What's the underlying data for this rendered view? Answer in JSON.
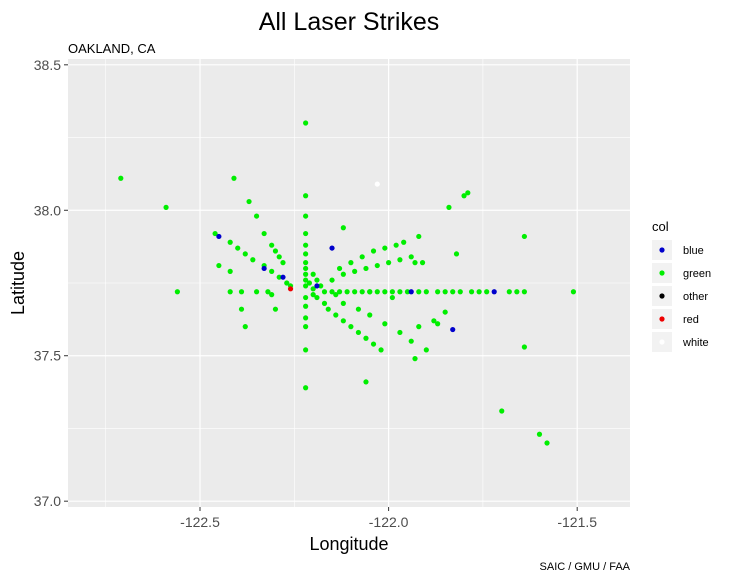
{
  "chart_data": {
    "type": "scatter",
    "title": "All Laser Strikes",
    "subtitle": "OAKLAND, CA",
    "caption": "SAIC / GMU / FAA",
    "xlabel": "Longitude",
    "ylabel": "Latitude",
    "xlim": [
      -122.85,
      -121.36
    ],
    "ylim": [
      36.98,
      38.52
    ],
    "x_ticks": [
      -122.5,
      -122.0,
      -121.5
    ],
    "x_tick_labels": [
      "-122.5",
      "-122.0",
      "-121.5"
    ],
    "y_ticks": [
      37.0,
      37.5,
      38.0,
      38.5
    ],
    "y_tick_labels": [
      "37.0",
      "37.5",
      "38.0",
      "38.5"
    ],
    "grid": true,
    "legend_title": "col",
    "legend_position": "right",
    "legend": [
      {
        "label": "blue",
        "color": "#0000cc"
      },
      {
        "label": "green",
        "color": "#00ee00"
      },
      {
        "label": "other",
        "color": "#000000"
      },
      {
        "label": "red",
        "color": "#ee0000"
      },
      {
        "label": "white",
        "color": "#ffffff"
      }
    ],
    "series": [
      {
        "name": "green",
        "color": "#00ee00",
        "points": [
          [
            -122.71,
            38.11
          ],
          [
            -122.41,
            38.11
          ],
          [
            -122.59,
            38.01
          ],
          [
            -122.56,
            37.72
          ],
          [
            -122.46,
            37.92
          ],
          [
            -122.45,
            37.81
          ],
          [
            -122.42,
            37.89
          ],
          [
            -122.4,
            37.87
          ],
          [
            -122.38,
            37.85
          ],
          [
            -122.36,
            37.83
          ],
          [
            -122.33,
            37.81
          ],
          [
            -122.31,
            37.79
          ],
          [
            -122.29,
            37.77
          ],
          [
            -122.27,
            37.75
          ],
          [
            -122.42,
            37.79
          ],
          [
            -122.42,
            37.72
          ],
          [
            -122.39,
            37.72
          ],
          [
            -122.35,
            37.72
          ],
          [
            -122.32,
            37.72
          ],
          [
            -122.37,
            38.03
          ],
          [
            -122.35,
            37.98
          ],
          [
            -122.33,
            37.92
          ],
          [
            -122.31,
            37.88
          ],
          [
            -122.3,
            37.86
          ],
          [
            -122.29,
            37.84
          ],
          [
            -122.28,
            37.82
          ],
          [
            -122.38,
            37.6
          ],
          [
            -122.39,
            37.66
          ],
          [
            -122.3,
            37.66
          ],
          [
            -122.31,
            37.71
          ],
          [
            -122.26,
            37.74
          ],
          [
            -122.22,
            38.3
          ],
          [
            -122.22,
            38.05
          ],
          [
            -122.22,
            37.98
          ],
          [
            -122.22,
            37.92
          ],
          [
            -122.22,
            37.88
          ],
          [
            -122.22,
            37.85
          ],
          [
            -122.22,
            37.82
          ],
          [
            -122.22,
            37.8
          ],
          [
            -122.22,
            37.78
          ],
          [
            -122.22,
            37.76
          ],
          [
            -122.22,
            37.74
          ],
          [
            -122.22,
            37.7
          ],
          [
            -122.22,
            37.67
          ],
          [
            -122.22,
            37.63
          ],
          [
            -122.22,
            37.6
          ],
          [
            -122.22,
            37.52
          ],
          [
            -122.22,
            37.39
          ],
          [
            -122.2,
            37.78
          ],
          [
            -122.19,
            37.76
          ],
          [
            -122.18,
            37.74
          ],
          [
            -122.21,
            37.75
          ],
          [
            -122.2,
            37.73
          ],
          [
            -122.2,
            37.71
          ],
          [
            -122.19,
            37.7
          ],
          [
            -122.17,
            37.68
          ],
          [
            -122.16,
            37.66
          ],
          [
            -122.14,
            37.64
          ],
          [
            -122.12,
            37.62
          ],
          [
            -122.1,
            37.6
          ],
          [
            -122.08,
            37.58
          ],
          [
            -122.06,
            37.56
          ],
          [
            -122.04,
            37.54
          ],
          [
            -122.02,
            37.52
          ],
          [
            -122.14,
            37.71
          ],
          [
            -122.12,
            37.68
          ],
          [
            -122.08,
            37.66
          ],
          [
            -122.05,
            37.64
          ],
          [
            -122.01,
            37.61
          ],
          [
            -121.97,
            37.58
          ],
          [
            -121.94,
            37.55
          ],
          [
            -121.9,
            37.52
          ],
          [
            -121.93,
            37.49
          ],
          [
            -122.06,
            37.41
          ],
          [
            -122.15,
            37.76
          ],
          [
            -122.12,
            37.78
          ],
          [
            -122.09,
            37.79
          ],
          [
            -122.06,
            37.8
          ],
          [
            -122.03,
            37.81
          ],
          [
            -122.0,
            37.82
          ],
          [
            -121.97,
            37.83
          ],
          [
            -121.94,
            37.84
          ],
          [
            -122.13,
            37.8
          ],
          [
            -122.1,
            37.82
          ],
          [
            -122.07,
            37.84
          ],
          [
            -122.04,
            37.86
          ],
          [
            -122.01,
            37.87
          ],
          [
            -121.98,
            37.88
          ],
          [
            -121.96,
            37.89
          ],
          [
            -121.92,
            37.91
          ],
          [
            -121.9,
            37.72
          ],
          [
            -121.87,
            37.72
          ],
          [
            -121.85,
            37.72
          ],
          [
            -121.83,
            37.72
          ],
          [
            -121.81,
            37.72
          ],
          [
            -121.78,
            37.72
          ],
          [
            -121.76,
            37.72
          ],
          [
            -121.74,
            37.72
          ],
          [
            -122.17,
            37.72
          ],
          [
            -122.15,
            37.72
          ],
          [
            -122.13,
            37.72
          ],
          [
            -122.11,
            37.72
          ],
          [
            -122.09,
            37.72
          ],
          [
            -122.07,
            37.72
          ],
          [
            -122.05,
            37.72
          ],
          [
            -122.03,
            37.72
          ],
          [
            -122.01,
            37.72
          ],
          [
            -121.99,
            37.72
          ],
          [
            -121.97,
            37.72
          ],
          [
            -121.95,
            37.72
          ],
          [
            -121.92,
            37.72
          ],
          [
            -121.93,
            37.82
          ],
          [
            -121.91,
            37.82
          ],
          [
            -121.82,
            37.85
          ],
          [
            -121.84,
            38.01
          ],
          [
            -121.8,
            38.05
          ],
          [
            -121.79,
            38.06
          ],
          [
            -121.85,
            37.65
          ],
          [
            -121.88,
            37.62
          ],
          [
            -121.87,
            37.61
          ],
          [
            -121.92,
            37.6
          ],
          [
            -121.64,
            37.91
          ],
          [
            -121.68,
            37.72
          ],
          [
            -121.66,
            37.72
          ],
          [
            -121.64,
            37.72
          ],
          [
            -121.51,
            37.72
          ],
          [
            -121.64,
            37.53
          ],
          [
            -121.7,
            37.31
          ],
          [
            -121.6,
            37.23
          ],
          [
            -121.58,
            37.2
          ],
          [
            -122.12,
            37.94
          ],
          [
            -121.99,
            37.7
          ],
          [
            -122.05,
            37.72
          ]
        ]
      },
      {
        "name": "blue",
        "color": "#0000cc",
        "points": [
          [
            -122.45,
            37.91
          ],
          [
            -122.33,
            37.8
          ],
          [
            -122.28,
            37.77
          ],
          [
            -122.15,
            37.87
          ],
          [
            -122.19,
            37.74
          ],
          [
            -121.94,
            37.72
          ],
          [
            -121.72,
            37.72
          ],
          [
            -121.83,
            37.59
          ]
        ]
      },
      {
        "name": "red",
        "color": "#ee0000",
        "points": [
          [
            -122.26,
            37.73
          ]
        ]
      },
      {
        "name": "other",
        "color": "#000000",
        "points": []
      },
      {
        "name": "white",
        "color": "#ffffff",
        "points": [
          [
            -122.03,
            38.09
          ]
        ]
      }
    ]
  }
}
